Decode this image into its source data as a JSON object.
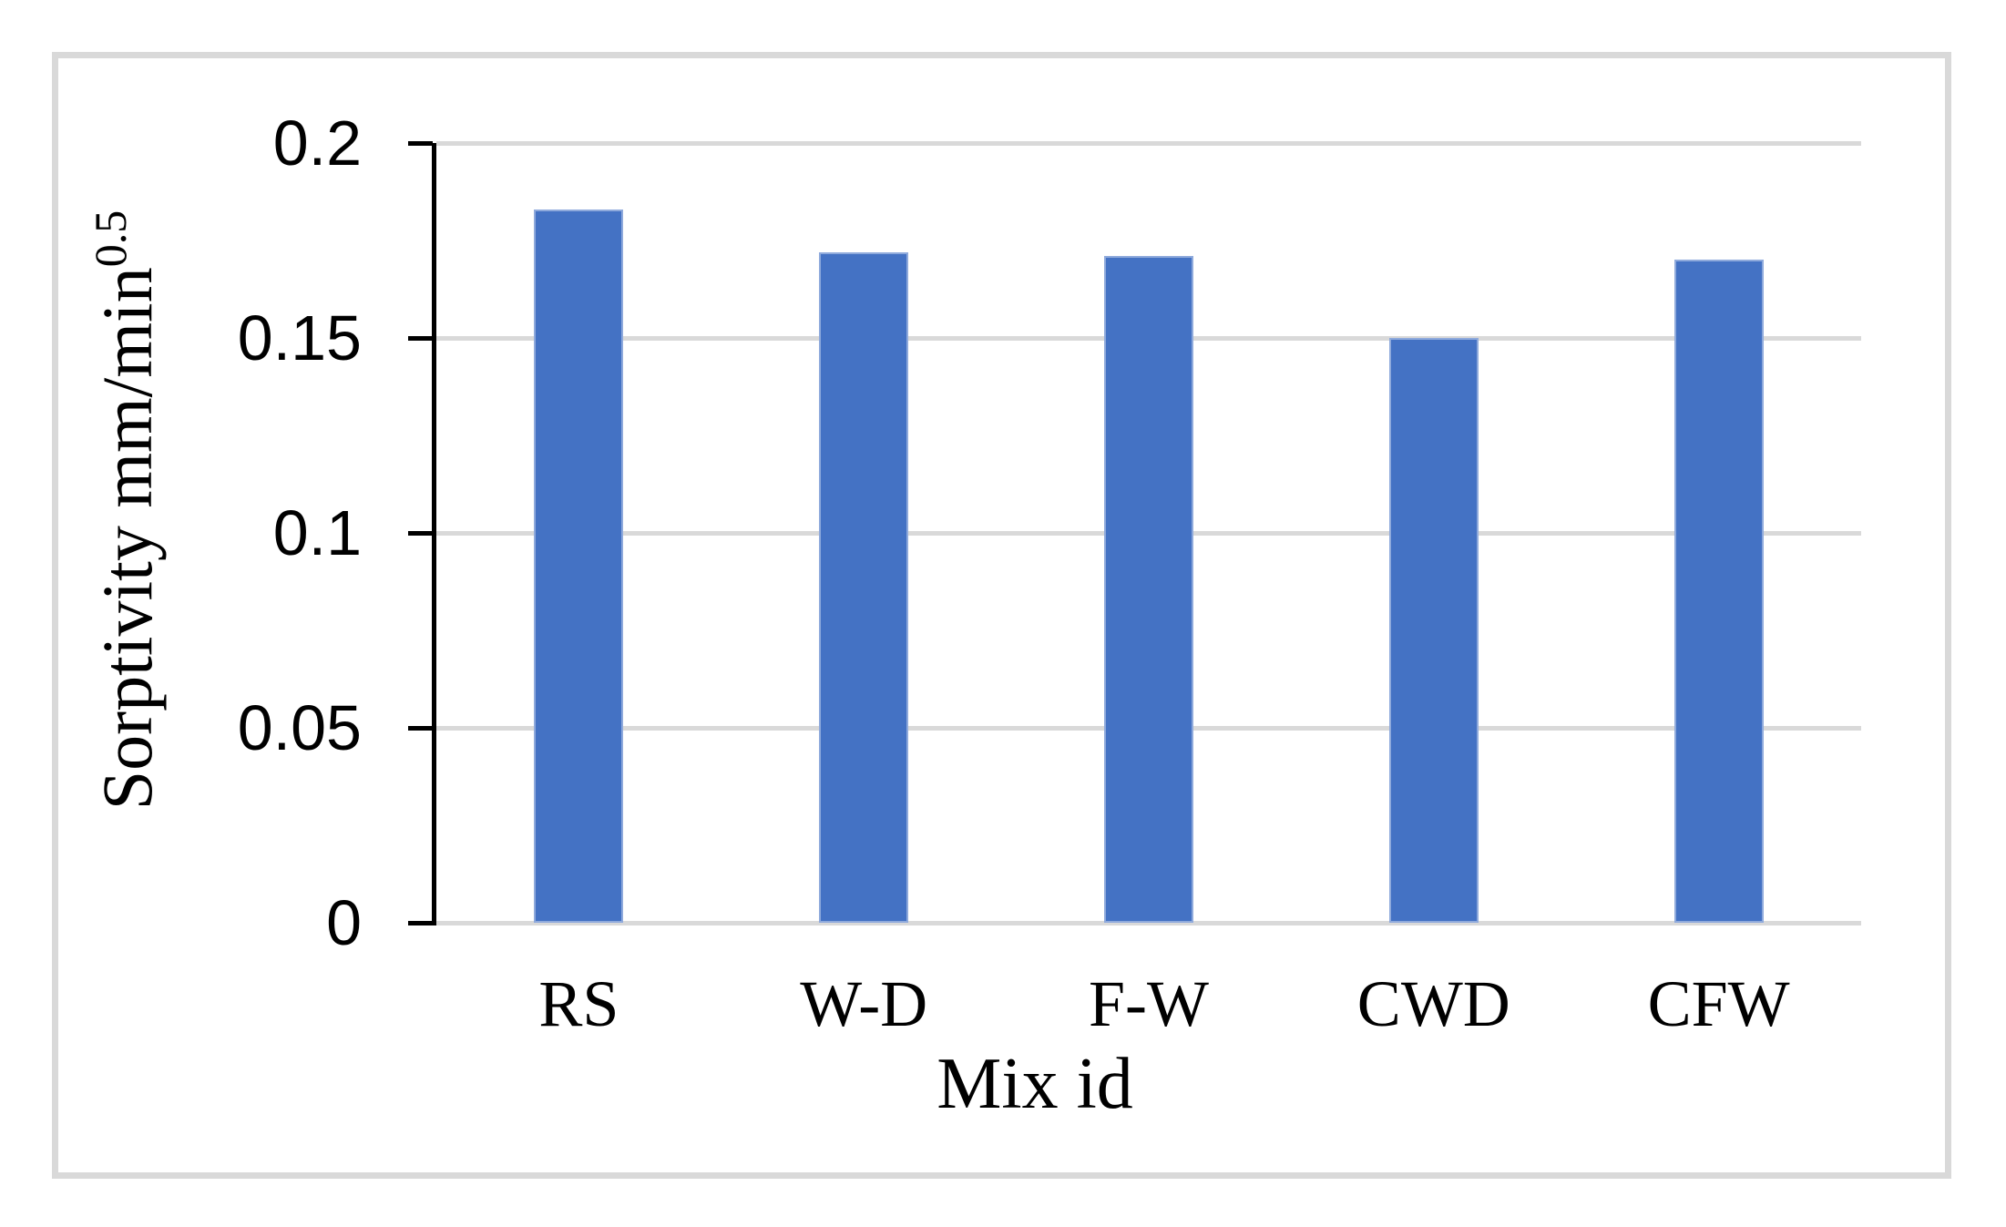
{
  "chart_data": {
    "type": "bar",
    "title": "",
    "xlabel": "Mix id",
    "ylabel": "Sorptivity mm/min",
    "ylabel_superscript": "0.5",
    "categories": [
      "RS",
      "W-D",
      "F-W",
      "CWD",
      "CFW"
    ],
    "values": [
      0.183,
      0.172,
      0.171,
      0.15,
      0.17
    ],
    "ylim": [
      0,
      0.2
    ],
    "ytick_labels": [
      "0.2",
      "0.15",
      "0.1",
      "0.05",
      "0"
    ],
    "ytick_values": [
      0.2,
      0.15,
      0.1,
      0.05,
      0
    ],
    "legend": "none",
    "grid": "horizontal",
    "bar_color": "#4472C4",
    "bar_edge_color": "#8FAADC",
    "gridline_color": "#D9D9D9",
    "frame_border_color": "#D9D9D9",
    "axis_line_color": "#000000",
    "text_color": "#000000"
  }
}
